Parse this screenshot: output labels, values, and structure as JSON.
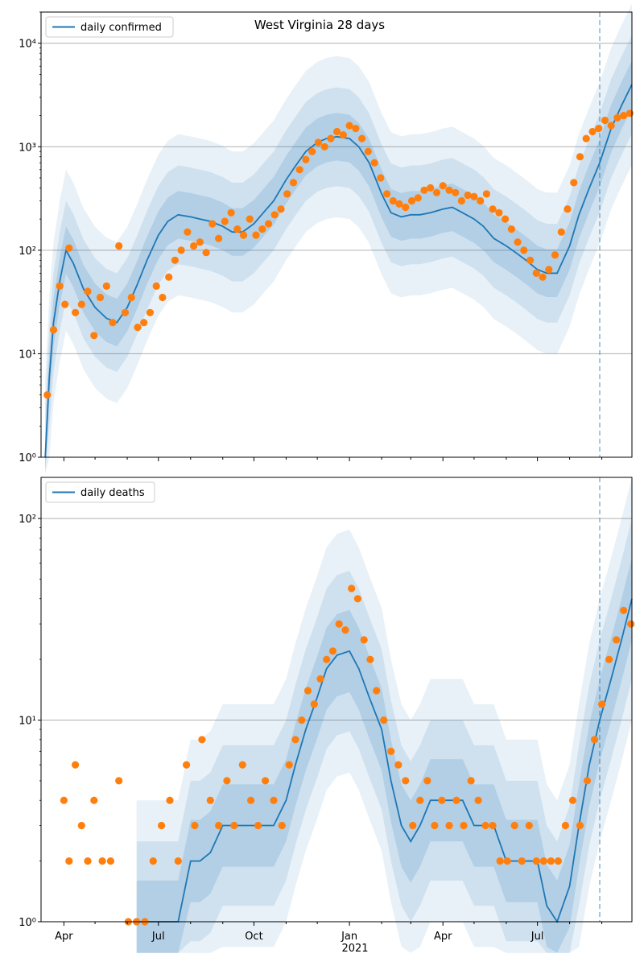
{
  "title": "West Virginia 28 days",
  "colors": {
    "line": "#1f77b4",
    "dots": "#ff7f0e",
    "band": "#1f77b4",
    "grid": "#b0b0b0",
    "forecast_line": "#1f77b4"
  },
  "x_axis": {
    "range": [
      "2020-03-10",
      "2021-09-30"
    ],
    "ticks": [
      {
        "date": "2020-04-01",
        "label": "Apr"
      },
      {
        "date": "2020-07-01",
        "label": "Jul"
      },
      {
        "date": "2020-10-01",
        "label": "Oct"
      },
      {
        "date": "2021-01-01",
        "label": "Jan"
      },
      {
        "date": "2021-04-01",
        "label": "Apr"
      },
      {
        "date": "2021-07-01",
        "label": "Jul"
      }
    ],
    "year_label": "2021",
    "forecast_date": "2021-08-30"
  },
  "chart_data": [
    {
      "type": "line",
      "legend": "daily confirmed",
      "legend_position": "top-left",
      "y_scale": "log",
      "ylim": [
        1,
        20000
      ],
      "y_ticks": [
        1,
        10,
        100,
        1000,
        10000
      ],
      "grid": true,
      "series": [
        {
          "name": "daily confirmed",
          "kind": "fit",
          "x": [
            "2020-03-14",
            "2020-03-18",
            "2020-03-22",
            "2020-03-28",
            "2020-04-03",
            "2020-04-10",
            "2020-04-20",
            "2020-05-01",
            "2020-05-12",
            "2020-05-22",
            "2020-06-01",
            "2020-06-10",
            "2020-06-20",
            "2020-07-01",
            "2020-07-10",
            "2020-07-20",
            "2020-08-01",
            "2020-08-10",
            "2020-08-20",
            "2020-09-01",
            "2020-09-10",
            "2020-09-20",
            "2020-10-01",
            "2020-10-10",
            "2020-10-20",
            "2020-11-01",
            "2020-11-10",
            "2020-11-20",
            "2020-12-01",
            "2020-12-10",
            "2020-12-20",
            "2021-01-01",
            "2021-01-10",
            "2021-01-20",
            "2021-02-01",
            "2021-02-10",
            "2021-02-20",
            "2021-03-01",
            "2021-03-10",
            "2021-03-20",
            "2021-04-01",
            "2021-04-10",
            "2021-04-20",
            "2021-05-01",
            "2021-05-10",
            "2021-05-20",
            "2021-06-01",
            "2021-06-10",
            "2021-06-20",
            "2021-07-01",
            "2021-07-10",
            "2021-07-20",
            "2021-08-01",
            "2021-08-10",
            "2021-08-20",
            "2021-08-30",
            "2021-09-10",
            "2021-09-20",
            "2021-09-30"
          ],
          "y": [
            1,
            6,
            20,
            50,
            100,
            75,
            42,
            28,
            22,
            20,
            28,
            45,
            80,
            140,
            190,
            220,
            210,
            200,
            190,
            170,
            150,
            150,
            180,
            230,
            300,
            480,
            650,
            900,
            1100,
            1200,
            1250,
            1200,
            1000,
            700,
            350,
            230,
            210,
            220,
            220,
            230,
            250,
            260,
            230,
            200,
            170,
            130,
            110,
            95,
            80,
            65,
            60,
            60,
            110,
            220,
            400,
            700,
            1500,
            2500,
            4000
          ]
        },
        {
          "name": "daily confirmed",
          "kind": "observed",
          "x": [
            "2020-03-16",
            "2020-03-22",
            "2020-03-28",
            "2020-04-02",
            "2020-04-06",
            "2020-04-12",
            "2020-04-18",
            "2020-04-24",
            "2020-04-30",
            "2020-05-06",
            "2020-05-12",
            "2020-05-18",
            "2020-05-24",
            "2020-05-30",
            "2020-06-05",
            "2020-06-11",
            "2020-06-17",
            "2020-06-23",
            "2020-06-29",
            "2020-07-05",
            "2020-07-11",
            "2020-07-17",
            "2020-07-23",
            "2020-07-29",
            "2020-08-04",
            "2020-08-10",
            "2020-08-16",
            "2020-08-22",
            "2020-08-28",
            "2020-09-03",
            "2020-09-09",
            "2020-09-15",
            "2020-09-21",
            "2020-09-27",
            "2020-10-03",
            "2020-10-09",
            "2020-10-15",
            "2020-10-21",
            "2020-10-27",
            "2020-11-02",
            "2020-11-08",
            "2020-11-14",
            "2020-11-20",
            "2020-11-26",
            "2020-12-02",
            "2020-12-08",
            "2020-12-14",
            "2020-12-20",
            "2020-12-26",
            "2021-01-01",
            "2021-01-07",
            "2021-01-13",
            "2021-01-19",
            "2021-01-25",
            "2021-01-31",
            "2021-02-06",
            "2021-02-12",
            "2021-02-18",
            "2021-02-24",
            "2021-03-02",
            "2021-03-08",
            "2021-03-14",
            "2021-03-20",
            "2021-03-26",
            "2021-04-01",
            "2021-04-07",
            "2021-04-13",
            "2021-04-19",
            "2021-04-25",
            "2021-05-01",
            "2021-05-07",
            "2021-05-13",
            "2021-05-19",
            "2021-05-25",
            "2021-05-31",
            "2021-06-06",
            "2021-06-12",
            "2021-06-18",
            "2021-06-24",
            "2021-06-30",
            "2021-07-06",
            "2021-07-12",
            "2021-07-18",
            "2021-07-24",
            "2021-07-30",
            "2021-08-05",
            "2021-08-11",
            "2021-08-17",
            "2021-08-23",
            "2021-08-29",
            "2021-09-04",
            "2021-09-10",
            "2021-09-16",
            "2021-09-22",
            "2021-09-28"
          ],
          "y": [
            4,
            17,
            45,
            30,
            105,
            25,
            30,
            40,
            15,
            35,
            45,
            20,
            110,
            25,
            35,
            18,
            20,
            25,
            45,
            35,
            55,
            80,
            100,
            150,
            110,
            120,
            95,
            180,
            130,
            190,
            230,
            160,
            140,
            200,
            140,
            160,
            180,
            220,
            250,
            350,
            450,
            600,
            750,
            900,
            1100,
            1000,
            1200,
            1400,
            1300,
            1600,
            1500,
            1200,
            900,
            700,
            500,
            350,
            300,
            280,
            260,
            300,
            320,
            380,
            400,
            360,
            420,
            380,
            360,
            300,
            340,
            330,
            300,
            350,
            250,
            230,
            200,
            160,
            120,
            100,
            80,
            60,
            55,
            65,
            90,
            150,
            250,
            450,
            800,
            1200,
            1400,
            1500,
            1800,
            1600,
            1900,
            2000,
            2100
          ]
        }
      ]
    },
    {
      "type": "line",
      "legend": "daily deaths",
      "legend_position": "top-left",
      "y_scale": "log",
      "ylim": [
        1,
        160
      ],
      "y_ticks": [
        1,
        10,
        100
      ],
      "grid": true,
      "series": [
        {
          "name": "daily deaths",
          "kind": "fit",
          "x": [
            "2020-06-10",
            "2020-07-01",
            "2020-07-20",
            "2020-08-01",
            "2020-08-10",
            "2020-08-20",
            "2020-09-01",
            "2020-09-10",
            "2020-09-20",
            "2020-10-01",
            "2020-10-10",
            "2020-10-20",
            "2020-11-01",
            "2020-11-10",
            "2020-11-20",
            "2020-12-01",
            "2020-12-10",
            "2020-12-20",
            "2021-01-01",
            "2021-01-10",
            "2021-01-20",
            "2021-02-01",
            "2021-02-10",
            "2021-02-20",
            "2021-03-01",
            "2021-03-10",
            "2021-03-20",
            "2021-04-01",
            "2021-04-10",
            "2021-04-20",
            "2021-05-01",
            "2021-05-10",
            "2021-05-20",
            "2021-06-01",
            "2021-06-10",
            "2021-06-20",
            "2021-07-01",
            "2021-07-10",
            "2021-07-20",
            "2021-08-01",
            "2021-08-10",
            "2021-08-20",
            "2021-08-30",
            "2021-09-10",
            "2021-09-20",
            "2021-09-30"
          ],
          "y": [
            1,
            1,
            1,
            2,
            2,
            2.2,
            3,
            3,
            3,
            3,
            3,
            3,
            4,
            6,
            9,
            13,
            18,
            21,
            22,
            18,
            13,
            9,
            5,
            3,
            2.5,
            3,
            4,
            4,
            4,
            4,
            3,
            3,
            3,
            2,
            2,
            2,
            2,
            1.2,
            1,
            1.5,
            3,
            6,
            10,
            16,
            25,
            40
          ]
        },
        {
          "name": "daily deaths",
          "kind": "observed",
          "x": [
            "2020-04-01",
            "2020-04-06",
            "2020-04-12",
            "2020-04-18",
            "2020-04-24",
            "2020-04-30",
            "2020-05-08",
            "2020-05-16",
            "2020-05-24",
            "2020-06-02",
            "2020-06-10",
            "2020-06-18",
            "2020-06-26",
            "2020-07-04",
            "2020-07-12",
            "2020-07-20",
            "2020-07-28",
            "2020-08-05",
            "2020-08-12",
            "2020-08-20",
            "2020-08-28",
            "2020-09-05",
            "2020-09-12",
            "2020-09-20",
            "2020-09-28",
            "2020-10-05",
            "2020-10-12",
            "2020-10-20",
            "2020-10-28",
            "2020-11-04",
            "2020-11-10",
            "2020-11-16",
            "2020-11-22",
            "2020-11-28",
            "2020-12-04",
            "2020-12-10",
            "2020-12-16",
            "2020-12-22",
            "2020-12-28",
            "2021-01-03",
            "2021-01-09",
            "2021-01-15",
            "2021-01-21",
            "2021-01-27",
            "2021-02-03",
            "2021-02-10",
            "2021-02-17",
            "2021-02-24",
            "2021-03-03",
            "2021-03-10",
            "2021-03-17",
            "2021-03-24",
            "2021-03-31",
            "2021-04-07",
            "2021-04-14",
            "2021-04-21",
            "2021-04-28",
            "2021-05-05",
            "2021-05-12",
            "2021-05-19",
            "2021-05-26",
            "2021-06-02",
            "2021-06-09",
            "2021-06-16",
            "2021-06-23",
            "2021-06-30",
            "2021-07-07",
            "2021-07-14",
            "2021-07-21",
            "2021-07-28",
            "2021-08-04",
            "2021-08-11",
            "2021-08-18",
            "2021-08-25",
            "2021-09-01",
            "2021-09-08",
            "2021-09-15",
            "2021-09-22",
            "2021-09-29"
          ],
          "y": [
            4,
            2,
            6,
            3,
            2,
            4,
            2,
            2,
            5,
            1,
            1,
            1,
            2,
            3,
            4,
            2,
            6,
            3,
            8,
            4,
            3,
            5,
            3,
            6,
            4,
            3,
            5,
            4,
            3,
            6,
            8,
            10,
            14,
            12,
            16,
            20,
            22,
            30,
            28,
            45,
            40,
            25,
            20,
            14,
            10,
            7,
            6,
            5,
            3,
            4,
            5,
            3,
            4,
            3,
            4,
            3,
            5,
            4,
            3,
            3,
            2,
            2,
            3,
            2,
            3,
            2,
            2,
            2,
            2,
            3,
            4,
            3,
            5,
            8,
            12,
            20,
            25,
            35,
            30
          ]
        }
      ]
    }
  ]
}
